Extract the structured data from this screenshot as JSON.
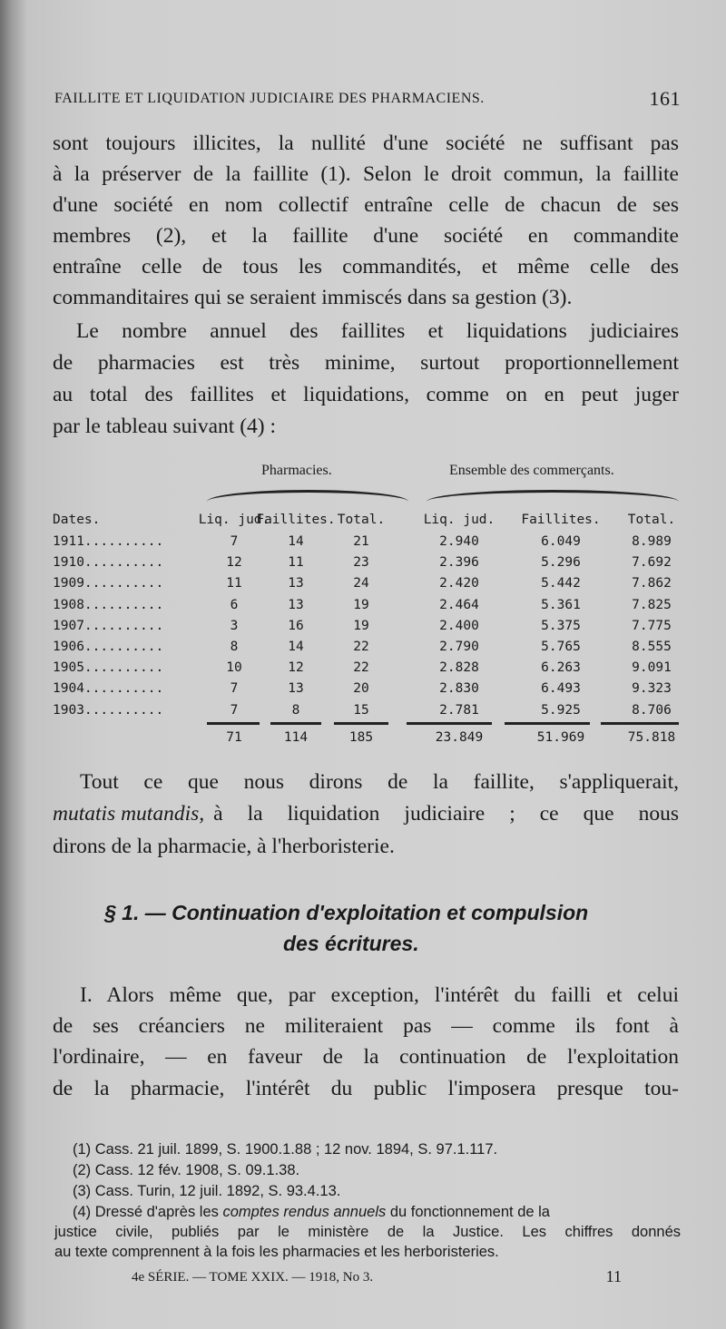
{
  "header": {
    "running_title": "FAILLITE ET LIQUIDATION JUDICIAIRE DES PHARMACIENS.",
    "page_number": "161"
  },
  "para1": [
    "sont toujours illicites, la nullité d'une société ne suffisant pas",
    "à la préserver de la faillite (1). Selon le droit commun, la faillite",
    "d'une société en nom collectif entraîne celle de chacun de ses",
    "membres (2), et la faillite d'une société en commandite",
    "entraîne celle de tous les commandités, et même celle des",
    "commanditaires qui se seraient immiscés dans sa gestion (3)."
  ],
  "para2": [
    "Le nombre annuel des faillites et liquidations judiciaires",
    "de pharmacies est très minime, surtout proportionnellement",
    "au total des faillites et liquidations, comme on en peut juger",
    "par le tableau suivant (4) :"
  ],
  "table": {
    "groups": [
      "Pharmacies.",
      "Ensemble des commerçants."
    ],
    "columns": [
      "Dates.",
      "Liq. jud.",
      "Faillites.",
      "Total.",
      "Liq. jud.",
      "Faillites.",
      "Total."
    ],
    "rows": [
      [
        "1911..........",
        "7",
        "14",
        "21",
        "2.940",
        "6.049",
        "8.989"
      ],
      [
        "1910..........",
        "12",
        "11",
        "23",
        "2.396",
        "5.296",
        "7.692"
      ],
      [
        "1909..........",
        "11",
        "13",
        "24",
        "2.420",
        "5.442",
        "7.862"
      ],
      [
        "1908..........",
        "6",
        "13",
        "19",
        "2.464",
        "5.361",
        "7.825"
      ],
      [
        "1907..........",
        "3",
        "16",
        "19",
        "2.400",
        "5.375",
        "7.775"
      ],
      [
        "1906..........",
        "8",
        "14",
        "22",
        "2.790",
        "5.765",
        "8.555"
      ],
      [
        "1905..........",
        "10",
        "12",
        "22",
        "2.828",
        "6.263",
        "9.091"
      ],
      [
        "1904..........",
        "7",
        "13",
        "20",
        "2.830",
        "6.493",
        "9.323"
      ],
      [
        "1903..........",
        "7",
        "8",
        "15",
        "2.781",
        "5.925",
        "8.706"
      ]
    ],
    "totals": [
      "",
      "71",
      "114",
      "185",
      "23.849",
      "51.969",
      "75.818"
    ]
  },
  "para3": {
    "line1": "Tout ce que nous dirons de la faillite, s'appliquerait,",
    "line2_italic": "mutatis mutandis,",
    "line2_rest": "à la liquidation judiciaire ; ce que nous",
    "line3": "dirons de la pharmacie, à l'herboristerie."
  },
  "section": {
    "line1": "§ 1. — Continuation d'exploitation et compulsion",
    "line2": "des écritures."
  },
  "para4": [
    "I. Alors même que, par exception, l'intérêt du failli et celui",
    "de ses créanciers ne militeraient pas — comme ils font à",
    "l'ordinaire, — en faveur de la continuation de l'exploitation",
    "de la pharmacie, l'intérêt du public l'imposera presque tou-"
  ],
  "footnotes": {
    "f1": "(1) Cass. 21 juil. 1899, S. 1900.1.88 ; 12 nov. 1894, S. 97.1.117.",
    "f2": "(2) Cass. 12 fév. 1908, S. 09.1.38.",
    "f3": "(3) Cass. Turin, 12 juil. 1892, S. 93.4.13.",
    "f4_a": "(4) Dressé d'après les",
    "f4_italic": "comptes rendus annuels",
    "f4_b": "du fonctionnement de la",
    "f4_line2": "justice civile, publiés par le ministère de la Justice. Les chiffres donnés",
    "f4_line3": "au texte comprennent à la fois les pharmacies et les herboristeries."
  },
  "footer": {
    "series": "4e SÉRIE. — TOME XXIX. — 1918, No 3.",
    "signature": "11"
  }
}
